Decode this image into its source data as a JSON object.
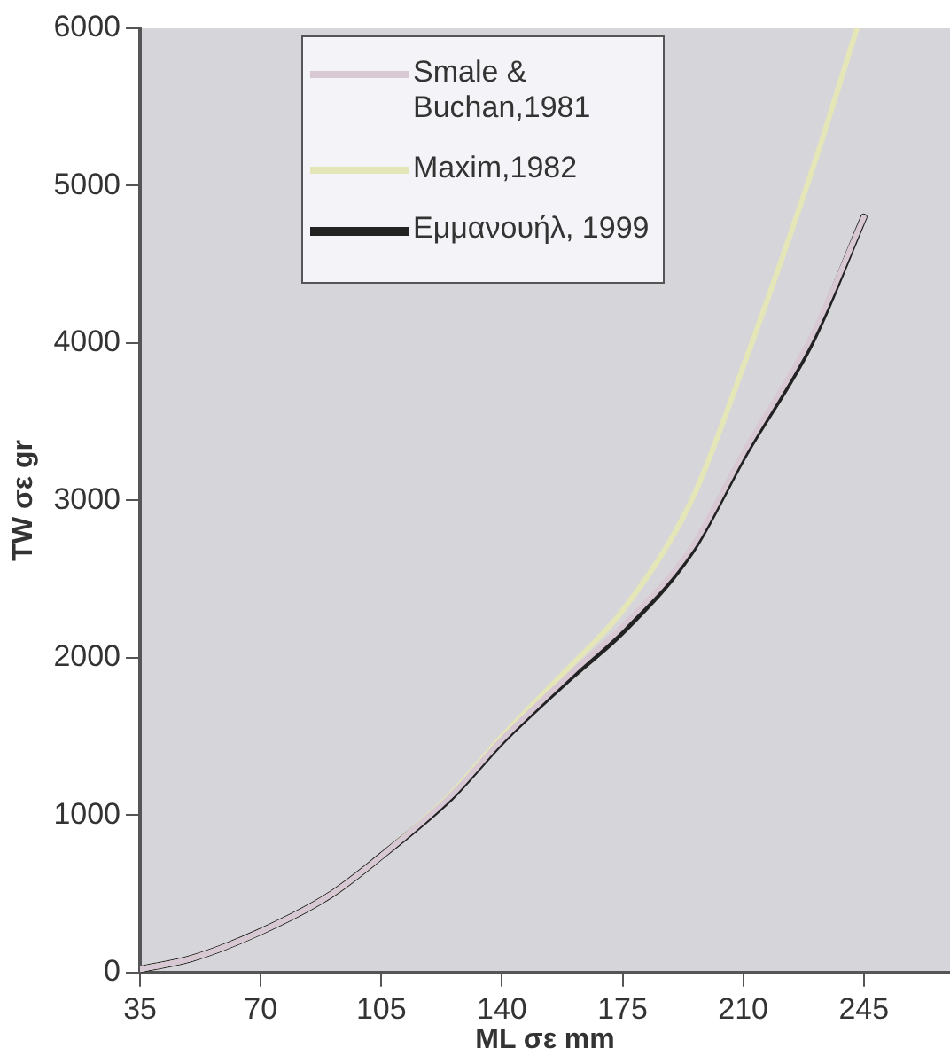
{
  "chart_data": {
    "type": "line",
    "xlabel": "ML σε mm",
    "ylabel": "TW σε gr",
    "xlim": [
      35,
      270
    ],
    "xticks": [
      35,
      70,
      105,
      140,
      175,
      210,
      245
    ],
    "ylim": [
      0,
      6000
    ],
    "yticks": [
      0,
      1000,
      2000,
      3000,
      4000,
      5000,
      6000
    ],
    "grid": false,
    "legend": "top left",
    "marker": "none",
    "line_style": "solid",
    "series": [
      {
        "name": "Smale & Buchan,1981",
        "color": "#d8c8d4",
        "x": [
          35,
          50,
          70,
          90,
          105,
          125,
          140,
          160,
          175,
          195,
          210,
          230,
          245
        ],
        "values": [
          20,
          90,
          260,
          490,
          740,
          1120,
          1480,
          1900,
          2200,
          2700,
          3300,
          4050,
          4800
        ]
      },
      {
        "name": "Maxim,1982",
        "color": "#e4e6b8",
        "x": [
          35,
          50,
          70,
          90,
          105,
          125,
          140,
          160,
          175,
          195,
          210,
          230,
          243
        ],
        "values": [
          20,
          90,
          260,
          490,
          740,
          1130,
          1500,
          1950,
          2300,
          3000,
          3850,
          5100,
          6000
        ]
      },
      {
        "name": "Εμμανουήλ, 1999",
        "color": "#222222",
        "x": [
          35,
          50,
          70,
          90,
          105,
          125,
          140,
          160,
          175,
          195,
          210,
          230,
          245
        ],
        "values": [
          20,
          90,
          260,
          490,
          740,
          1110,
          1470,
          1880,
          2170,
          2680,
          3280,
          4020,
          4800
        ]
      }
    ]
  }
}
